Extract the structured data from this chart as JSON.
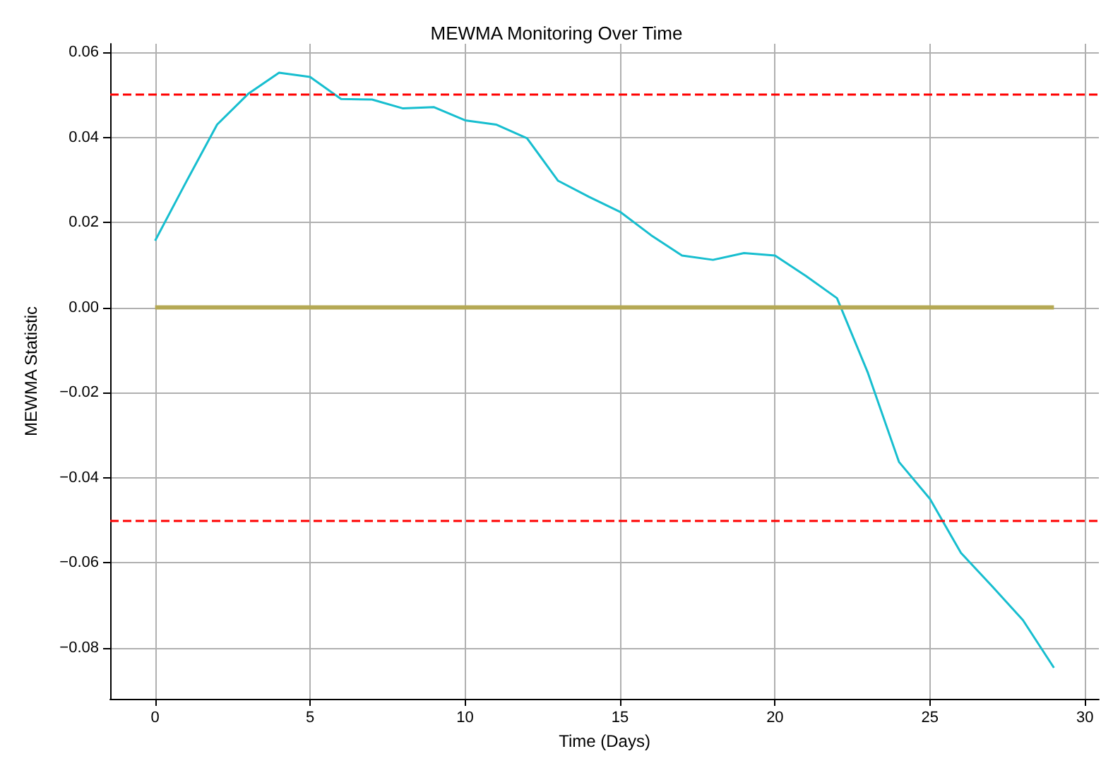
{
  "chart_data": {
    "type": "line",
    "title": "MEWMA Monitoring Over Time",
    "xlabel": "Time (Days)",
    "ylabel": "MEWMA Statistic",
    "x": [
      0,
      1,
      2,
      3,
      4,
      5,
      6,
      7,
      8,
      9,
      10,
      11,
      12,
      13,
      14,
      15,
      16,
      17,
      18,
      19,
      20,
      21,
      22,
      23,
      24,
      25,
      26,
      27,
      28,
      29
    ],
    "series": [
      {
        "color": "#17becf",
        "values": [
          0.0157,
          0.0295,
          0.043,
          0.0502,
          0.0552,
          0.0542,
          0.049,
          0.0489,
          0.0468,
          0.0471,
          0.044,
          0.043,
          0.0398,
          0.0298,
          0.026,
          0.0225,
          0.017,
          0.0122,
          0.0112,
          0.0128,
          0.0122,
          0.0074,
          0.0022,
          -0.0154,
          -0.0363,
          -0.045,
          -0.0577,
          -0.0655,
          -0.0735,
          -0.0847
        ]
      },
      {
        "color": "#b5a955",
        "values": [
          0,
          0,
          0,
          0,
          0,
          0,
          0,
          0,
          0,
          0,
          0,
          0,
          0,
          0,
          0,
          0,
          0,
          0,
          0,
          0,
          0,
          0,
          0,
          0,
          0,
          0,
          0,
          0,
          0,
          0
        ]
      }
    ],
    "xlim": [
      -1.45,
      30.45
    ],
    "xticks": [
      0,
      5,
      10,
      15,
      20,
      25,
      30
    ],
    "ylim": [
      -0.092,
      0.062
    ],
    "yticks": [
      {
        "value": -0.08,
        "label": "−0.08"
      },
      {
        "value": -0.06,
        "label": "−0.06"
      },
      {
        "value": -0.04,
        "label": "−0.04"
      },
      {
        "value": -0.02,
        "label": "−0.02"
      },
      {
        "value": 0,
        "label": "0.00"
      },
      {
        "value": 0.02,
        "label": "0.02"
      },
      {
        "value": 0.04,
        "label": "0.04"
      },
      {
        "value": 0.06,
        "label": "0.06"
      }
    ],
    "ref_lines": [
      {
        "axis": "y",
        "value": 0.05,
        "color": "#ff0000",
        "line_style": "dashed"
      },
      {
        "axis": "y",
        "value": -0.05,
        "color": "#ff0000",
        "line_style": "dashed"
      }
    ],
    "grid": true,
    "marker": "none",
    "line_style": "solid"
  }
}
